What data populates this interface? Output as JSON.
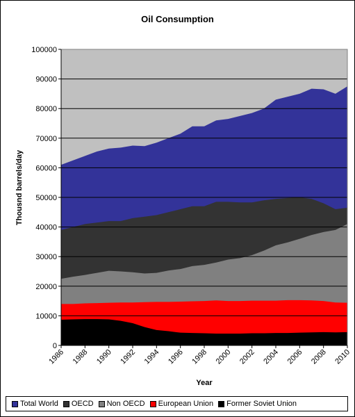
{
  "chart_data": {
    "type": "area",
    "title": "Oil Consumption",
    "xlabel": "Year",
    "ylabel": "Thousnd barrels/day",
    "ylim": [
      0,
      100000
    ],
    "yticks": [
      "0",
      "10000",
      "20000",
      "30000",
      "40000",
      "50000",
      "60000",
      "70000",
      "80000",
      "90000",
      "100000"
    ],
    "xticks": [
      "1986",
      "1988",
      "1990",
      "1992",
      "1994",
      "1996",
      "1998",
      "2000",
      "2002",
      "2004",
      "2006",
      "2008",
      "2010"
    ],
    "x": [
      1986,
      1987,
      1988,
      1989,
      1990,
      1991,
      1992,
      1993,
      1994,
      1995,
      1996,
      1997,
      1998,
      1999,
      2000,
      2001,
      2002,
      2003,
      2004,
      2005,
      2006,
      2007,
      2008,
      2009,
      2010
    ],
    "grid": "horizontal",
    "legend_position": "bottom",
    "background": "#c0c0c0",
    "series": [
      {
        "name": "Total World",
        "color": "#333399",
        "values": [
          61000,
          62500,
          64000,
          65500,
          66500,
          66800,
          67500,
          67300,
          68500,
          70000,
          71500,
          74000,
          74000,
          76000,
          76500,
          77500,
          78500,
          80000,
          83000,
          84000,
          85000,
          86700,
          86500,
          85000,
          87500
        ]
      },
      {
        "name": "OECD",
        "color": "#333333",
        "values": [
          39000,
          40000,
          41000,
          41500,
          42000,
          42000,
          43000,
          43500,
          44000,
          45000,
          46000,
          47000,
          47000,
          48500,
          48500,
          48300,
          48300,
          49000,
          49500,
          49800,
          50000,
          49500,
          48000,
          46000,
          46500
        ]
      },
      {
        "name": "Non OECD",
        "color": "#808080",
        "values": [
          22500,
          23200,
          23800,
          24500,
          25200,
          25000,
          24700,
          24300,
          24500,
          25300,
          25800,
          26800,
          27200,
          28000,
          29000,
          29500,
          30500,
          32000,
          33800,
          34800,
          36000,
          37300,
          38300,
          39000,
          41000
        ]
      },
      {
        "name": "European Union",
        "color": "#ff0000",
        "values": [
          14000,
          14000,
          14200,
          14300,
          14400,
          14500,
          14500,
          14600,
          14700,
          14700,
          14800,
          14900,
          15000,
          15200,
          15000,
          15000,
          15100,
          15100,
          15100,
          15300,
          15300,
          15200,
          15000,
          14500,
          14400
        ]
      },
      {
        "name": "Former Soviet Union",
        "color": "#000000",
        "values": [
          8700,
          8800,
          8900,
          8900,
          8800,
          8300,
          7500,
          6200,
          5200,
          4800,
          4300,
          4200,
          4100,
          4000,
          4000,
          4000,
          4100,
          4100,
          4200,
          4200,
          4300,
          4400,
          4500,
          4400,
          4500
        ]
      }
    ]
  }
}
